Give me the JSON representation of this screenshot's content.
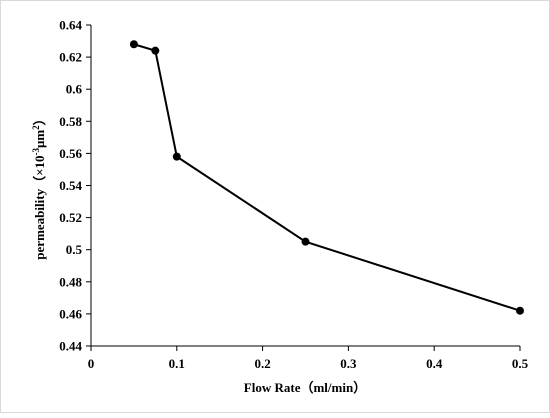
{
  "chart_data": {
    "type": "line",
    "xlabel": "Flow Rate（ml/min）",
    "ylabel": {
      "prefix": "permeability（×10",
      "exp1": "-3",
      "mid": "μm",
      "exp2": "2",
      "suffix": "）"
    },
    "xlim": [
      0,
      0.5
    ],
    "ylim": [
      0.44,
      0.64
    ],
    "xticks": [
      0,
      0.1,
      0.2,
      0.3,
      0.4,
      0.5
    ],
    "xtick_labels": [
      "0",
      "0.1",
      "0.2",
      "0.3",
      "0.4",
      "0.5"
    ],
    "yticks": [
      0.44,
      0.46,
      0.48,
      0.5,
      0.52,
      0.54,
      0.56,
      0.58,
      0.6,
      0.62,
      0.64
    ],
    "ytick_labels": [
      "0.44",
      "0.46",
      "0.48",
      "0.5",
      "0.52",
      "0.54",
      "0.56",
      "0.58",
      "0.6",
      "0.62",
      "0.64"
    ],
    "grid": false,
    "series": [
      {
        "x": [
          0.05,
          0.075,
          0.1,
          0.25,
          0.5
        ],
        "y": [
          0.628,
          0.624,
          0.558,
          0.505,
          0.462
        ],
        "color": "#000000",
        "marker": "circle"
      }
    ]
  }
}
